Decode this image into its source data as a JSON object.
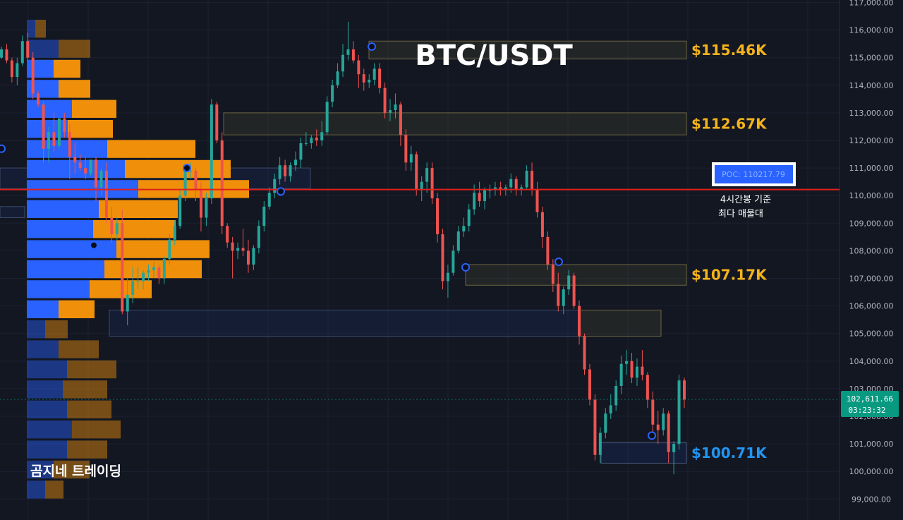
{
  "chart_data": {
    "type": "candlestick",
    "title": "BTC/USDT",
    "ylim": [
      98800,
      117000
    ],
    "y_ticks": [
      "117,000.00",
      "116,000.00",
      "115,000.00",
      "114,000.00",
      "113,000.00",
      "112,000.00",
      "111,000.00",
      "110,000.00",
      "109,000.00",
      "108,000.00",
      "107,000.00",
      "106,000.00",
      "105,000.00",
      "104,000.00",
      "103,000.00",
      "102,000.00",
      "101,000.00",
      "100,000.00",
      "99,000.00"
    ],
    "y_tick_values": [
      117000,
      116000,
      115000,
      114000,
      113000,
      112000,
      111000,
      110000,
      109000,
      108000,
      107000,
      106000,
      105000,
      104000,
      103000,
      102000,
      101000,
      100000,
      99000
    ],
    "current_price": {
      "label": "102,611.66",
      "timer": "03:23:32",
      "value": 102611.66
    },
    "poc": {
      "label": "POC: 110217.79",
      "value": 110217.79,
      "note_line1": "4시간봉 기준",
      "note_line2": "최다 매물대"
    },
    "zones": [
      {
        "label": "$115.46K",
        "low": 114950,
        "high": 115600,
        "label_color": "#f5b31b"
      },
      {
        "label": "$112.67K",
        "low": 112200,
        "high": 113000,
        "label_color": "#f5b31b"
      },
      {
        "label": "$107.17K",
        "low": 106750,
        "high": 107500,
        "label_color": "#f5b31b"
      },
      {
        "label": "$100.71K",
        "low": 100300,
        "high": 101050,
        "label_color": "#2196f3"
      }
    ],
    "blue_zones": [
      {
        "low": 110250,
        "high": 111000
      },
      {
        "low": 109200,
        "high": 109600
      },
      {
        "low": 104900,
        "high": 105850
      }
    ],
    "candles": [
      [
        115000,
        115400,
        114950,
        115300
      ],
      [
        115300,
        115500,
        114800,
        114900
      ],
      [
        114900,
        115000,
        114100,
        114300
      ],
      [
        114300,
        115000,
        114000,
        114800
      ],
      [
        114800,
        115800,
        114700,
        115600
      ],
      [
        115600,
        115900,
        114900,
        115000
      ],
      [
        115000,
        115200,
        113500,
        113700
      ],
      [
        113700,
        113800,
        113200,
        113300
      ],
      [
        113300,
        113400,
        111200,
        111700
      ],
      [
        111700,
        112500,
        111200,
        112300
      ],
      [
        112300,
        113000,
        111600,
        111800
      ],
      [
        111800,
        112800,
        111700,
        112800
      ],
      [
        112800,
        113000,
        112100,
        112300
      ],
      [
        112300,
        112600,
        110600,
        111400
      ],
      [
        111400,
        111900,
        110800,
        111200
      ],
      [
        111200,
        111500,
        110900,
        111000
      ],
      [
        111000,
        111400,
        110600,
        110800
      ],
      [
        110800,
        111300,
        110700,
        111300
      ],
      [
        111300,
        111400,
        109800,
        110300
      ],
      [
        110300,
        111000,
        110000,
        110900
      ],
      [
        110900,
        111200,
        109000,
        109200
      ],
      [
        109200,
        109600,
        108300,
        108600
      ],
      [
        108600,
        109200,
        108400,
        109000
      ],
      [
        109000,
        109500,
        105700,
        105800
      ],
      [
        105800,
        107000,
        105300,
        106400
      ],
      [
        106400,
        107400,
        106100,
        106900
      ],
      [
        106900,
        107400,
        106600,
        106900
      ],
      [
        106900,
        107300,
        106600,
        107200
      ],
      [
        107200,
        107500,
        106900,
        107300
      ],
      [
        107300,
        107600,
        107000,
        107400
      ],
      [
        107400,
        107500,
        106800,
        107000
      ],
      [
        107000,
        107800,
        106800,
        107700
      ],
      [
        107700,
        108600,
        107500,
        108400
      ],
      [
        108400,
        109100,
        108200,
        108900
      ],
      [
        108900,
        110200,
        108800,
        110000
      ],
      [
        110000,
        111100,
        109800,
        110900
      ],
      [
        110900,
        111200,
        110600,
        110900
      ],
      [
        110900,
        111000,
        109800,
        110200
      ],
      [
        110200,
        110500,
        108700,
        109200
      ],
      [
        109200,
        110100,
        108900,
        109900
      ],
      [
        109900,
        113500,
        109700,
        113300
      ],
      [
        113300,
        113400,
        111900,
        112000
      ],
      [
        112000,
        112300,
        108600,
        108900
      ],
      [
        108900,
        109000,
        108100,
        108300
      ],
      [
        108300,
        108500,
        107000,
        108000
      ],
      [
        108000,
        108300,
        107700,
        108100
      ],
      [
        108100,
        108800,
        107800,
        108000
      ],
      [
        108000,
        108400,
        107200,
        107500
      ],
      [
        107500,
        108200,
        107300,
        108100
      ],
      [
        108100,
        109100,
        107900,
        108900
      ],
      [
        108900,
        109800,
        108700,
        109600
      ],
      [
        109600,
        110300,
        109500,
        110100
      ],
      [
        110100,
        110800,
        109900,
        110600
      ],
      [
        110600,
        111400,
        110400,
        111100
      ],
      [
        111100,
        111300,
        110500,
        110700
      ],
      [
        110700,
        111200,
        110500,
        111100
      ],
      [
        111100,
        111600,
        110900,
        111300
      ],
      [
        111300,
        112100,
        111000,
        111900
      ],
      [
        111900,
        112300,
        111800,
        111900
      ],
      [
        111900,
        112200,
        111700,
        112100
      ],
      [
        112100,
        112400,
        111800,
        112000
      ],
      [
        112000,
        112700,
        111800,
        112300
      ],
      [
        112300,
        113600,
        112200,
        113400
      ],
      [
        113400,
        114200,
        113200,
        114000
      ],
      [
        114000,
        114800,
        113900,
        114500
      ],
      [
        114500,
        115500,
        114300,
        115100
      ],
      [
        115100,
        116300,
        114900,
        115300
      ],
      [
        115300,
        115600,
        114800,
        114900
      ],
      [
        114900,
        115100,
        113900,
        114400
      ],
      [
        114400,
        114600,
        113800,
        114100
      ],
      [
        114100,
        114400,
        113900,
        114200
      ],
      [
        114200,
        114800,
        114000,
        114600
      ],
      [
        114600,
        114800,
        113700,
        113900
      ],
      [
        113900,
        114100,
        112800,
        113000
      ],
      [
        113000,
        113500,
        112700,
        113100
      ],
      [
        113100,
        113700,
        112800,
        113300
      ],
      [
        113300,
        113400,
        111800,
        112200
      ],
      [
        112200,
        112400,
        110900,
        111200
      ],
      [
        111200,
        111800,
        110900,
        111500
      ],
      [
        111500,
        111600,
        110000,
        110200
      ],
      [
        110200,
        110700,
        109800,
        110500
      ],
      [
        110500,
        111200,
        110100,
        111000
      ],
      [
        111000,
        111200,
        109700,
        109900
      ],
      [
        109900,
        110100,
        108300,
        108600
      ],
      [
        108600,
        108800,
        106600,
        106900
      ],
      [
        106900,
        107500,
        106300,
        107200
      ],
      [
        107200,
        108200,
        107100,
        108000
      ],
      [
        108000,
        108900,
        107900,
        108700
      ],
      [
        108700,
        109200,
        108500,
        108900
      ],
      [
        108900,
        109700,
        108700,
        109500
      ],
      [
        109500,
        110400,
        109300,
        110100
      ],
      [
        110100,
        110500,
        109600,
        109800
      ],
      [
        109800,
        110300,
        109500,
        110200
      ],
      [
        110200,
        110400,
        109900,
        110200
      ],
      [
        110200,
        110500,
        110000,
        110300
      ],
      [
        110300,
        110500,
        110000,
        110200
      ],
      [
        110200,
        110400,
        110000,
        110300
      ],
      [
        110300,
        110800,
        110100,
        110600
      ],
      [
        110600,
        110700,
        110000,
        110200
      ],
      [
        110200,
        110400,
        110000,
        110300
      ],
      [
        110300,
        111100,
        110200,
        110900
      ],
      [
        110900,
        111200,
        110000,
        110200
      ],
      [
        110200,
        110500,
        109200,
        109400
      ],
      [
        109400,
        109600,
        108100,
        108500
      ],
      [
        108500,
        108700,
        107300,
        107500
      ],
      [
        107500,
        107700,
        106500,
        106800
      ],
      [
        106800,
        107200,
        105800,
        106000
      ],
      [
        106000,
        106700,
        105700,
        106600
      ],
      [
        106600,
        107300,
        106400,
        107100
      ],
      [
        107100,
        107200,
        105900,
        106000
      ],
      [
        106000,
        106200,
        104600,
        104900
      ],
      [
        104900,
        105000,
        103500,
        103700
      ],
      [
        103700,
        103900,
        102400,
        102600
      ],
      [
        102600,
        102800,
        100400,
        100600
      ],
      [
        100600,
        101600,
        100300,
        101400
      ],
      [
        101400,
        102300,
        101200,
        102100
      ],
      [
        102100,
        102800,
        101900,
        102400
      ],
      [
        102400,
        103300,
        102200,
        103100
      ],
      [
        103100,
        104200,
        102800,
        103900
      ],
      [
        103900,
        104400,
        103500,
        104000
      ],
      [
        104000,
        104300,
        103200,
        103400
      ],
      [
        103400,
        104100,
        103100,
        103800
      ],
      [
        103800,
        104400,
        103300,
        103500
      ],
      [
        103500,
        103600,
        102300,
        102600
      ],
      [
        102600,
        102900,
        101400,
        101700
      ],
      [
        101700,
        102200,
        101000,
        101500
      ],
      [
        101500,
        102300,
        101300,
        102100
      ],
      [
        102100,
        102200,
        100300,
        100700
      ],
      [
        100700,
        101100,
        99900,
        101000
      ],
      [
        101000,
        103500,
        100800,
        103300
      ],
      [
        103300,
        103400,
        102300,
        102600
      ]
    ],
    "volume_profile": [
      {
        "buy": 12,
        "sell": 15,
        "dim": true
      },
      {
        "buy": 45,
        "sell": 45,
        "dim": true
      },
      {
        "buy": 38,
        "sell": 38,
        "dim": false
      },
      {
        "buy": 45,
        "sell": 45,
        "dim": false
      },
      {
        "buy": 64,
        "sell": 63,
        "dim": false
      },
      {
        "buy": 58,
        "sell": 64,
        "dim": false
      },
      {
        "buy": 114,
        "sell": 125,
        "dim": false
      },
      {
        "buy": 139,
        "sell": 150,
        "dim": false
      },
      {
        "buy": 158,
        "sell": 157,
        "dim": false
      },
      {
        "buy": 102,
        "sell": 112,
        "dim": false
      },
      {
        "buy": 94,
        "sell": 117,
        "dim": false
      },
      {
        "buy": 127,
        "sell": 132,
        "dim": false
      },
      {
        "buy": 110,
        "sell": 138,
        "dim": false
      },
      {
        "buy": 89,
        "sell": 88,
        "dim": false
      },
      {
        "buy": 45,
        "sell": 51,
        "dim": false
      },
      {
        "buy": 26,
        "sell": 32,
        "dim": true
      },
      {
        "buy": 45,
        "sell": 57,
        "dim": true
      },
      {
        "buy": 57,
        "sell": 70,
        "dim": true
      },
      {
        "buy": 51,
        "sell": 63,
        "dim": true
      },
      {
        "buy": 57,
        "sell": 63,
        "dim": true
      },
      {
        "buy": 64,
        "sell": 69,
        "dim": true
      },
      {
        "buy": 57,
        "sell": 57,
        "dim": true
      },
      {
        "buy": 38,
        "sell": 51,
        "dim": true
      },
      {
        "buy": 26,
        "sell": 26,
        "dim": true
      }
    ]
  },
  "watermark": "곰지네 트레이딩",
  "colors": {
    "up": "#26a69a",
    "down": "#ef5350",
    "poc_line": "#e0201c",
    "buy_bar": "#2962ff",
    "sell_bar": "#f0900a",
    "yellow": "#f5b31b",
    "blue_label": "#2196f3"
  }
}
